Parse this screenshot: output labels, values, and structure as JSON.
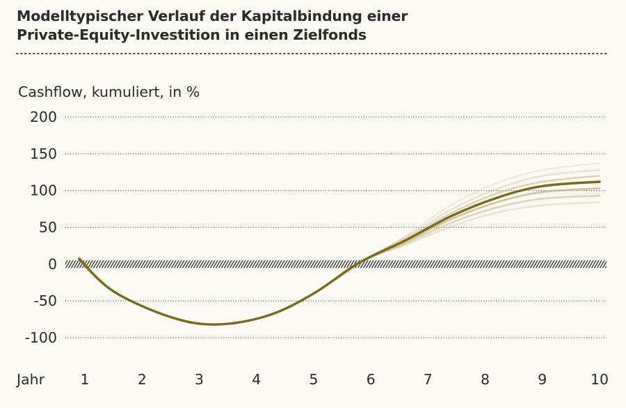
{
  "chart_data": {
    "type": "line",
    "title": [
      "Modelltypischer Verlauf der Kapitalbindung einer",
      "Private-Equity-Investition in einen Zielfonds"
    ],
    "ylabel": "Cashflow, kumuliert, in %",
    "xlabel": "Jahr",
    "ylim": [
      -100,
      200
    ],
    "yticks": [
      200,
      150,
      100,
      50,
      0,
      -50,
      -100
    ],
    "xticks": [
      1,
      2,
      3,
      4,
      5,
      6,
      7,
      8,
      9,
      10
    ],
    "colors": {
      "main": "#7a6a1a",
      "band": "#b7a86a",
      "zero_line": "#333333",
      "grid": "#555555"
    },
    "series": [
      {
        "band": 5,
        "values": [
          [
            0.9,
            10
          ],
          [
            1.5,
            -37
          ],
          [
            2.5,
            -72
          ],
          [
            3.3,
            -82
          ],
          [
            4.2,
            -70
          ],
          [
            5.0,
            -40
          ],
          [
            5.8,
            0
          ],
          [
            6.6,
            38
          ],
          [
            7.4,
            80
          ],
          [
            8.2,
            110
          ],
          [
            9.0,
            128
          ],
          [
            10.0,
            137
          ]
        ]
      },
      {
        "band": 4,
        "values": [
          [
            0.9,
            9
          ],
          [
            1.5,
            -37
          ],
          [
            2.5,
            -72
          ],
          [
            3.3,
            -82
          ],
          [
            4.2,
            -70
          ],
          [
            5.0,
            -40
          ],
          [
            5.8,
            1
          ],
          [
            6.6,
            36
          ],
          [
            7.4,
            74
          ],
          [
            8.2,
            102
          ],
          [
            9.0,
            120
          ],
          [
            10.0,
            128
          ]
        ]
      },
      {
        "band": 3,
        "values": [
          [
            0.9,
            8
          ],
          [
            1.5,
            -37
          ],
          [
            2.5,
            -72
          ],
          [
            3.3,
            -82
          ],
          [
            4.2,
            -70
          ],
          [
            5.0,
            -40
          ],
          [
            5.8,
            2
          ],
          [
            6.6,
            34
          ],
          [
            7.4,
            69
          ],
          [
            8.2,
            96
          ],
          [
            9.0,
            112
          ],
          [
            10.0,
            120
          ]
        ]
      },
      {
        "band": 0,
        "values": [
          [
            0.9,
            7
          ],
          [
            1.5,
            -37
          ],
          [
            2.5,
            -72
          ],
          [
            3.3,
            -82
          ],
          [
            4.2,
            -70
          ],
          [
            5.0,
            -40
          ],
          [
            5.8,
            2
          ],
          [
            6.6,
            32
          ],
          [
            7.4,
            65
          ],
          [
            8.2,
            90
          ],
          [
            9.0,
            106
          ],
          [
            10.0,
            112
          ]
        ]
      },
      {
        "band": 2,
        "values": [
          [
            0.9,
            6
          ],
          [
            1.5,
            -37
          ],
          [
            2.5,
            -72
          ],
          [
            3.3,
            -82
          ],
          [
            4.2,
            -70
          ],
          [
            5.0,
            -40
          ],
          [
            5.8,
            2
          ],
          [
            6.6,
            30
          ],
          [
            7.4,
            61
          ],
          [
            8.2,
            84
          ],
          [
            9.0,
            98
          ],
          [
            10.0,
            103
          ]
        ]
      },
      {
        "band": 3,
        "values": [
          [
            0.9,
            5
          ],
          [
            1.5,
            -37
          ],
          [
            2.5,
            -72
          ],
          [
            3.3,
            -82
          ],
          [
            4.2,
            -70
          ],
          [
            5.0,
            -40
          ],
          [
            5.8,
            2
          ],
          [
            6.6,
            28
          ],
          [
            7.4,
            56
          ],
          [
            8.2,
            77
          ],
          [
            9.0,
            89
          ],
          [
            10.0,
            93
          ]
        ]
      },
      {
        "band": 4,
        "values": [
          [
            0.9,
            5
          ],
          [
            1.5,
            -37
          ],
          [
            2.5,
            -72
          ],
          [
            3.3,
            -82
          ],
          [
            4.2,
            -70
          ],
          [
            5.0,
            -40
          ],
          [
            5.8,
            3
          ],
          [
            6.6,
            26
          ],
          [
            7.4,
            51
          ],
          [
            8.2,
            70
          ],
          [
            9.0,
            80
          ],
          [
            10.0,
            84
          ]
        ]
      }
    ]
  }
}
